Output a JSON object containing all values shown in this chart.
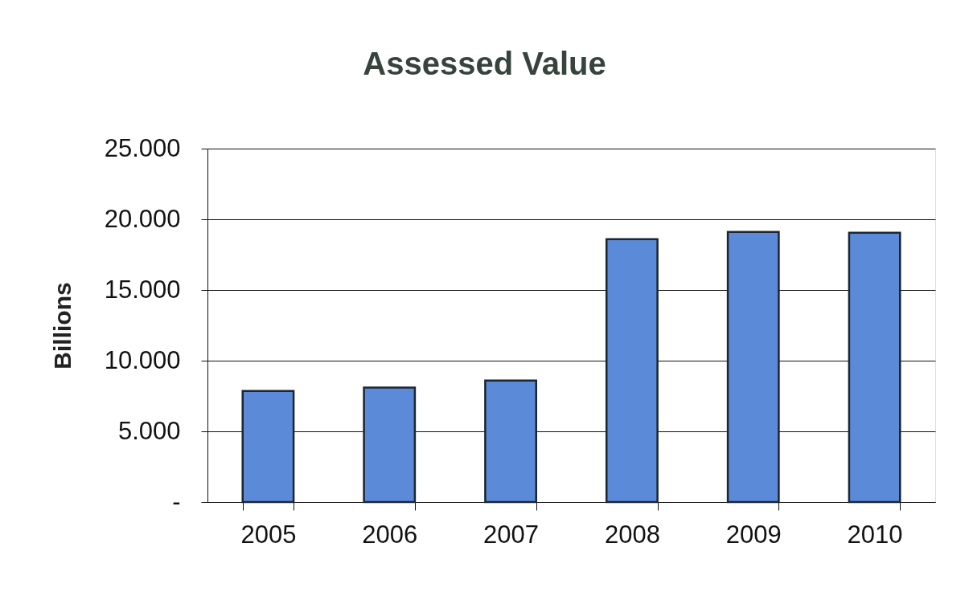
{
  "chart_data": {
    "type": "bar",
    "title": "Assessed Value",
    "ylabel": "Billions",
    "categories": [
      "2005",
      "2006",
      "2007",
      "2008",
      "2009",
      "2010"
    ],
    "values": [
      7.85,
      8.1,
      8.6,
      18.6,
      19.1,
      19.05
    ],
    "color": "#5b8bd8",
    "ylim": [
      0,
      25
    ],
    "yticks": [
      {
        "value": 0,
        "label": "-"
      },
      {
        "value": 5,
        "label": "5.000"
      },
      {
        "value": 10,
        "label": "10.000"
      },
      {
        "value": 15,
        "label": "15.000"
      },
      {
        "value": 20,
        "label": "20.000"
      },
      {
        "value": 25,
        "label": "25.000"
      }
    ],
    "grid": "y"
  }
}
